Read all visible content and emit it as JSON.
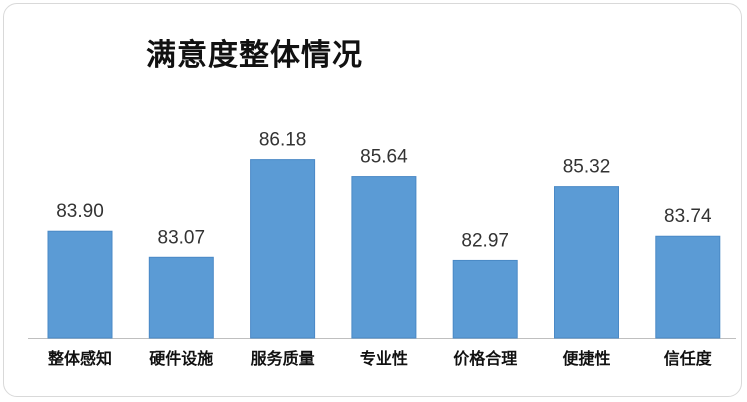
{
  "chart_data": {
    "type": "bar",
    "title": "满意度整体情况",
    "xlabel": "",
    "ylabel": "",
    "categories": [
      "整体感知",
      "硬件设施",
      "服务质量",
      "专业性",
      "价格合理",
      "便捷性",
      "信任度"
    ],
    "values": [
      83.9,
      83.07,
      86.18,
      85.64,
      82.97,
      85.32,
      83.74
    ],
    "value_labels": [
      "83.90",
      "83.07",
      "86.18",
      "85.64",
      "82.97",
      "85.32",
      "83.74"
    ],
    "ylim": [
      80.5,
      86.55
    ],
    "grid": false,
    "legend": "none",
    "colors": {
      "bar": "#5b9bd5",
      "bar_edge": "#4a89c6",
      "axis": "#bfbfbf"
    }
  }
}
